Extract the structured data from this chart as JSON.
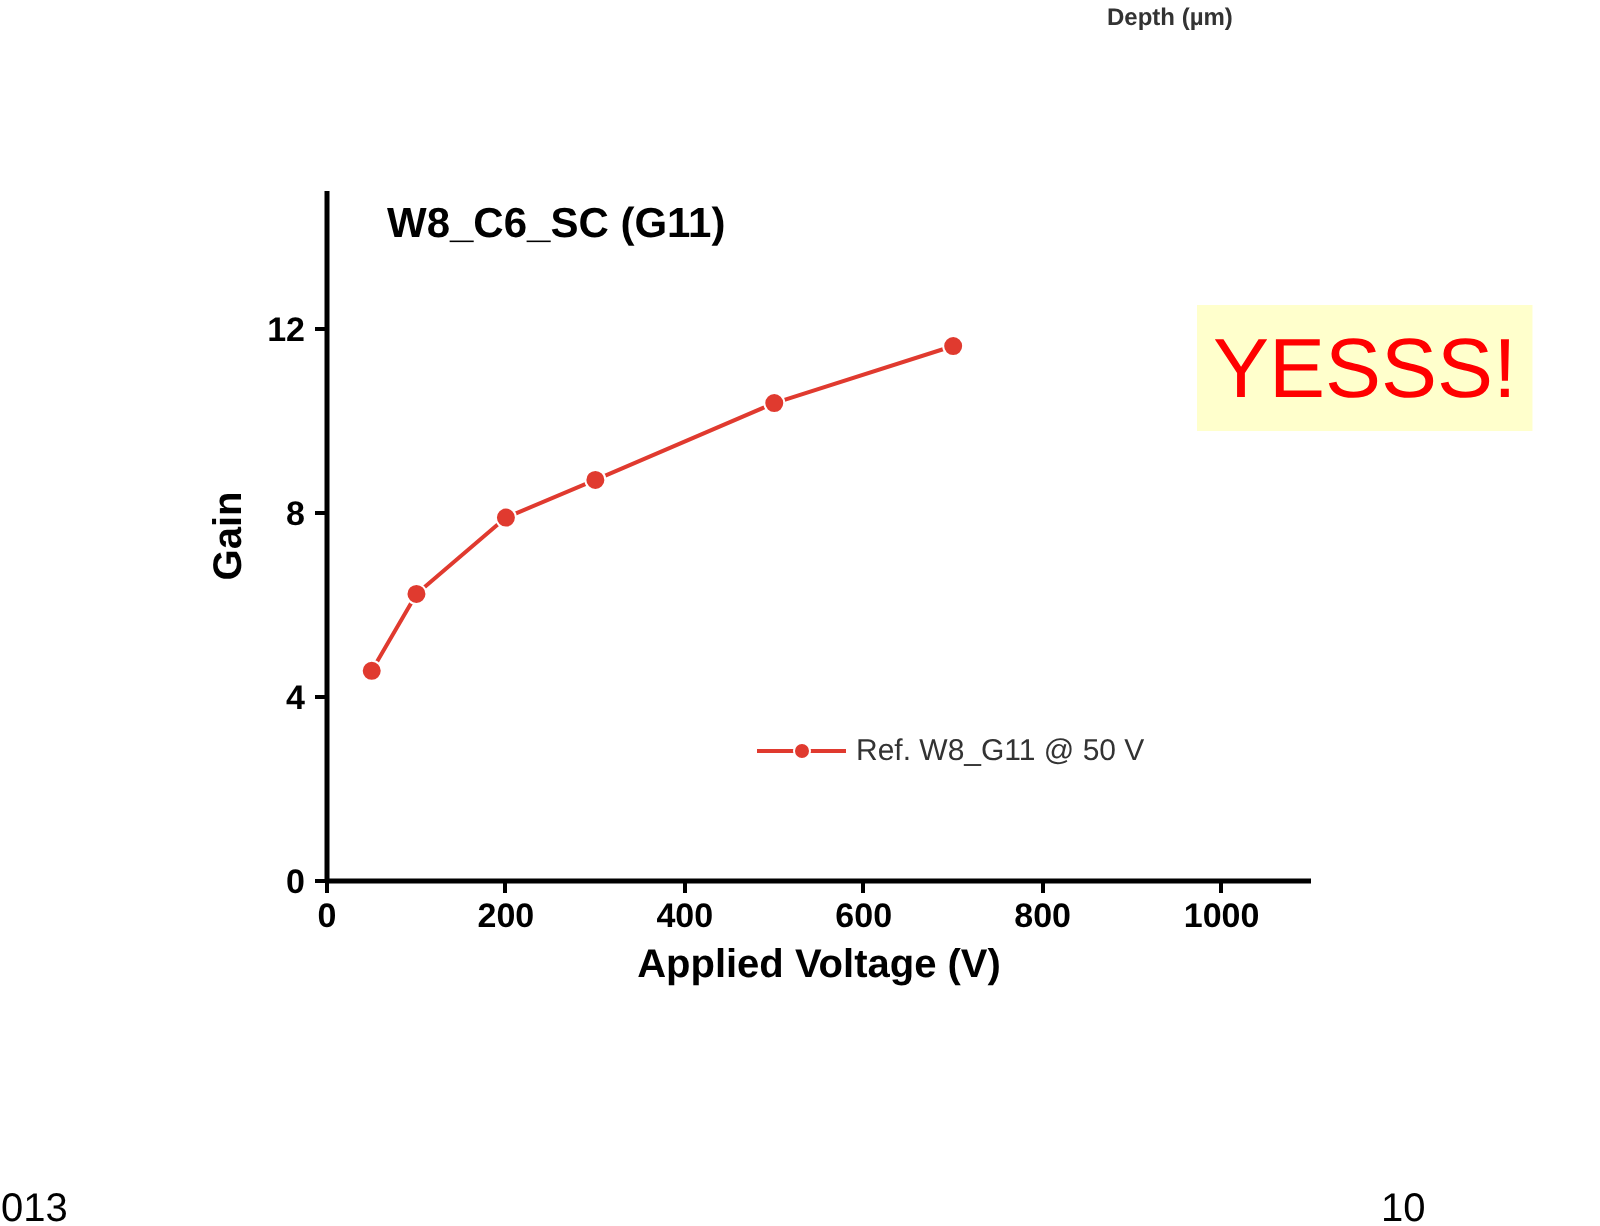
{
  "chart_data": {
    "type": "line",
    "title": "W8_C6_SC (G11)",
    "xlabel": "Applied Voltage (V)",
    "ylabel": "Gain",
    "x": [
      50,
      100,
      200,
      300,
      500,
      700
    ],
    "series": [
      {
        "name": "Ref. W8_G11 @ 50 V",
        "color": "#e03a2f",
        "values": [
          4.57,
          6.24,
          7.9,
          8.72,
          10.39,
          11.63
        ]
      }
    ],
    "xlim": [
      0,
      1100
    ],
    "ylim": [
      0,
      15
    ],
    "xticks": [
      0,
      200,
      400,
      600,
      800,
      1000
    ],
    "yticks": [
      0,
      4,
      8,
      12
    ],
    "marker": "circle",
    "line_style": "solid",
    "grid": false,
    "legend": "bottom right",
    "annotations": [
      "YESSS!",
      "Depth (µm)",
      "013",
      "10"
    ]
  }
}
